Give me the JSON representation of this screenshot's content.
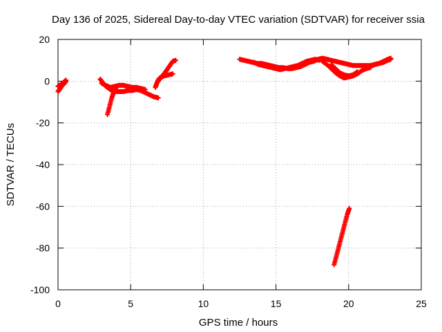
{
  "chart_data": {
    "type": "scatter",
    "title": "Day 136 of 2025, Sidereal Day-to-day VTEC variation (SDTVAR) for receiver ssia",
    "xlabel": "GPS time / hours",
    "ylabel": "SDTVAR / TECUs",
    "xlim": [
      0,
      25
    ],
    "ylim": [
      -100,
      20
    ],
    "xticks": [
      0,
      5,
      10,
      15,
      20,
      25
    ],
    "yticks": [
      -100,
      -80,
      -60,
      -40,
      -20,
      0,
      20
    ],
    "grid": true,
    "marker_color": "#ff0000",
    "series": [
      {
        "name": "SDTVAR",
        "segments": [
          [
            [
              0.0,
              -5
            ],
            [
              0.15,
              -3.5
            ],
            [
              0.3,
              -2
            ],
            [
              0.45,
              -1
            ],
            [
              0.55,
              0
            ]
          ],
          [
            [
              0.0,
              -2.5
            ],
            [
              0.2,
              -1.5
            ],
            [
              0.4,
              -0.5
            ],
            [
              0.55,
              0.5
            ]
          ],
          [
            [
              2.9,
              1
            ],
            [
              3.1,
              -1
            ],
            [
              3.3,
              -2.5
            ],
            [
              3.5,
              -3.5
            ],
            [
              3.7,
              -4.5
            ],
            [
              3.9,
              -5
            ],
            [
              4.2,
              -5
            ],
            [
              4.5,
              -5
            ],
            [
              4.8,
              -4.5
            ],
            [
              5.1,
              -4.5
            ],
            [
              5.4,
              -4
            ],
            [
              5.7,
              -4.5
            ],
            [
              6.0,
              -5.5
            ],
            [
              6.3,
              -6.5
            ],
            [
              6.6,
              -7.5
            ],
            [
              6.9,
              -8
            ]
          ],
          [
            [
              3.0,
              -1
            ],
            [
              3.3,
              -2
            ],
            [
              3.6,
              -3
            ],
            [
              3.9,
              -2.5
            ],
            [
              4.2,
              -2
            ],
            [
              4.5,
              -2
            ],
            [
              4.8,
              -2.5
            ],
            [
              5.1,
              -3
            ],
            [
              5.4,
              -3
            ],
            [
              5.7,
              -3.5
            ],
            [
              6.0,
              -4
            ]
          ],
          [
            [
              3.4,
              -16
            ],
            [
              3.55,
              -12
            ],
            [
              3.7,
              -8
            ],
            [
              3.85,
              -5
            ],
            [
              4.0,
              -3
            ]
          ],
          [
            [
              6.7,
              -3
            ],
            [
              6.8,
              -1
            ],
            [
              6.9,
              0.5
            ],
            [
              7.0,
              1.5
            ],
            [
              7.3,
              2.5
            ],
            [
              7.6,
              3
            ],
            [
              7.9,
              3.5
            ]
          ],
          [
            [
              6.9,
              0
            ],
            [
              7.1,
              2
            ],
            [
              7.3,
              3.5
            ],
            [
              7.5,
              5.5
            ],
            [
              7.7,
              7.5
            ],
            [
              7.9,
              9.5
            ],
            [
              8.1,
              10
            ]
          ],
          [
            [
              12.5,
              10.5
            ],
            [
              12.8,
              10
            ],
            [
              13.1,
              9.5
            ],
            [
              13.4,
              9
            ],
            [
              13.7,
              8.5
            ],
            [
              14.0,
              8.5
            ],
            [
              14.3,
              8
            ],
            [
              14.6,
              7.5
            ],
            [
              14.9,
              7
            ],
            [
              15.2,
              6.5
            ],
            [
              15.5,
              6.5
            ],
            [
              15.8,
              6
            ],
            [
              16.1,
              6
            ],
            [
              16.4,
              6.5
            ],
            [
              16.7,
              7
            ],
            [
              17.0,
              8
            ],
            [
              17.3,
              9
            ],
            [
              17.6,
              9.5
            ],
            [
              17.9,
              10.5
            ],
            [
              18.2,
              11
            ],
            [
              18.5,
              10.5
            ],
            [
              18.8,
              10
            ],
            [
              19.1,
              9.5
            ],
            [
              19.4,
              9
            ],
            [
              19.7,
              8.5
            ],
            [
              20.0,
              8
            ],
            [
              20.3,
              7.5
            ],
            [
              20.6,
              7.5
            ],
            [
              20.9,
              7.5
            ],
            [
              21.2,
              7.5
            ],
            [
              21.5,
              7.5
            ],
            [
              21.8,
              8
            ],
            [
              22.1,
              8.5
            ],
            [
              22.4,
              9.5
            ],
            [
              22.7,
              10.5
            ],
            [
              22.9,
              11
            ]
          ],
          [
            [
              13.5,
              9
            ],
            [
              13.8,
              8
            ],
            [
              14.1,
              7.5
            ],
            [
              14.4,
              7
            ],
            [
              14.7,
              6.5
            ],
            [
              15.0,
              6
            ],
            [
              15.3,
              5.5
            ],
            [
              15.6,
              6
            ],
            [
              15.9,
              6.5
            ],
            [
              16.2,
              7
            ],
            [
              16.5,
              7.5
            ],
            [
              16.8,
              8.5
            ],
            [
              17.1,
              9.5
            ],
            [
              17.4,
              10
            ],
            [
              17.7,
              10.5
            ],
            [
              18.0,
              10
            ]
          ],
          [
            [
              18.2,
              9.5
            ],
            [
              18.5,
              8
            ],
            [
              18.8,
              6
            ],
            [
              19.1,
              4
            ],
            [
              19.4,
              2.5
            ],
            [
              19.7,
              1.5
            ],
            [
              20.0,
              2
            ],
            [
              20.3,
              2.5
            ],
            [
              20.6,
              3.5
            ],
            [
              20.9,
              5
            ],
            [
              21.2,
              6
            ],
            [
              21.5,
              6.5
            ]
          ],
          [
            [
              18.8,
              8
            ],
            [
              19.1,
              6
            ],
            [
              19.4,
              4
            ],
            [
              19.7,
              3
            ],
            [
              20.0,
              2.5
            ],
            [
              20.3,
              3
            ],
            [
              20.6,
              4.5
            ]
          ],
          [
            [
              21.5,
              7
            ],
            [
              21.8,
              8
            ],
            [
              22.1,
              8.5
            ],
            [
              22.4,
              9
            ],
            [
              22.7,
              10
            ],
            [
              22.9,
              10.5
            ]
          ],
          [
            [
              19.0,
              -88
            ],
            [
              19.15,
              -84
            ],
            [
              19.3,
              -80
            ],
            [
              19.45,
              -76
            ],
            [
              19.6,
              -72
            ],
            [
              19.75,
              -68
            ],
            [
              19.9,
              -64
            ],
            [
              20.05,
              -61
            ]
          ]
        ]
      }
    ]
  }
}
